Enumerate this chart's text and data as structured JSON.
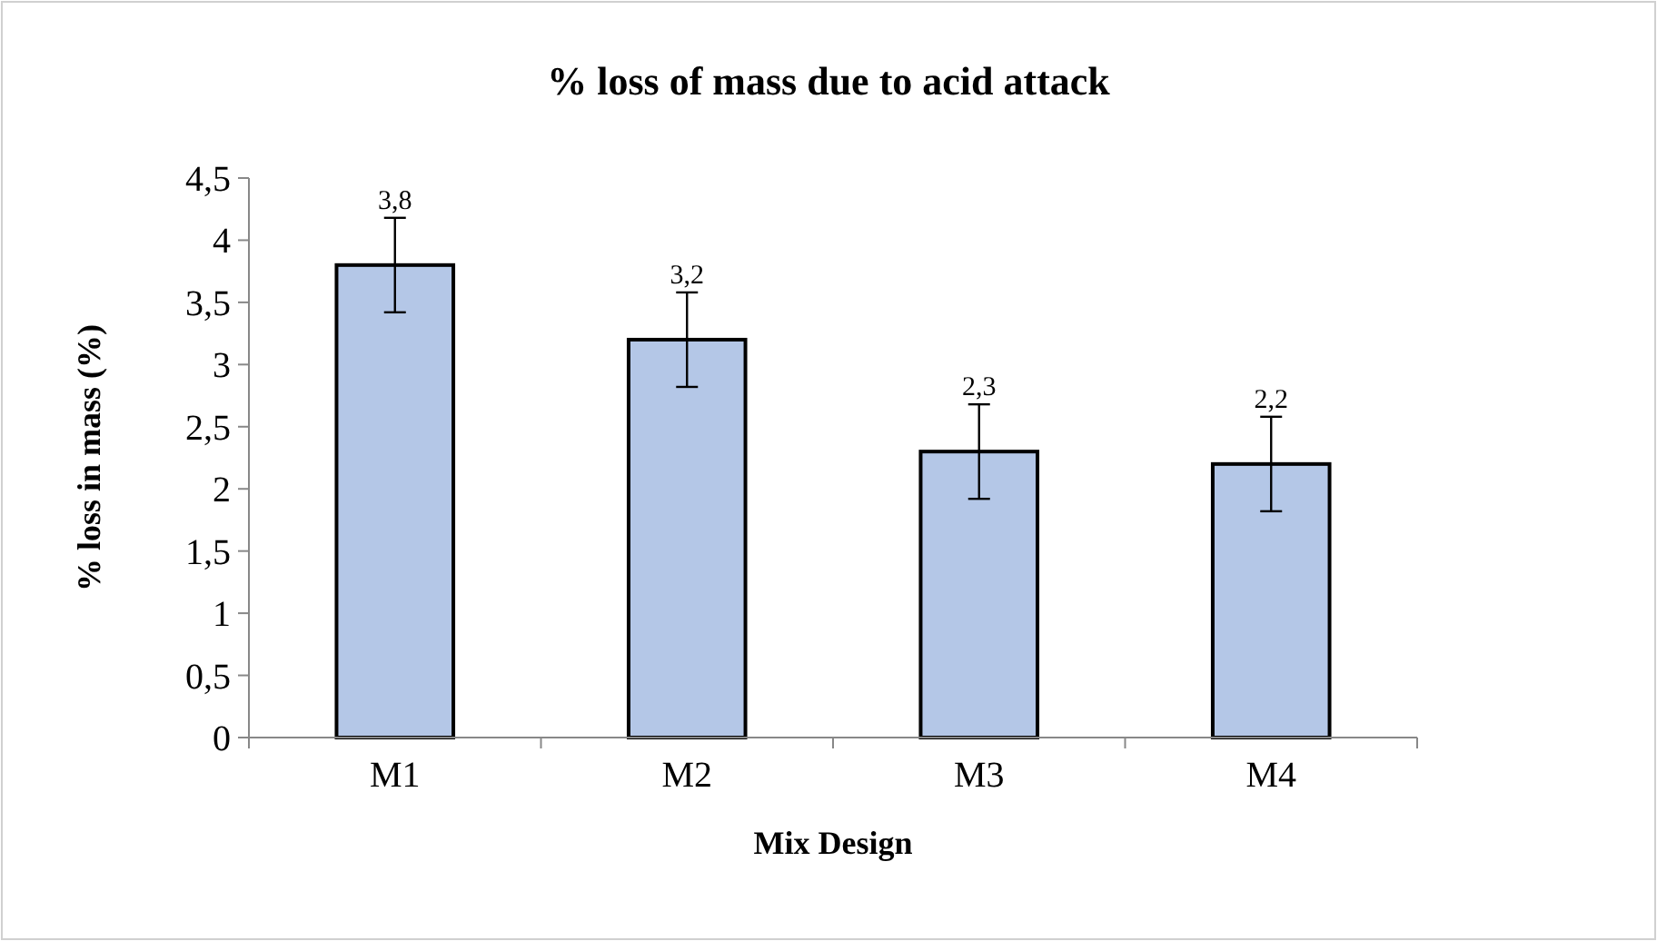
{
  "chart_data": {
    "type": "bar",
    "title": "% loss of mass due to acid attack",
    "xlabel": "Mix Design",
    "ylabel": "% loss in mass (%)",
    "categories": [
      "M1",
      "M2",
      "M3",
      "M4"
    ],
    "values": [
      3.8,
      3.2,
      2.3,
      2.2
    ],
    "value_labels": [
      "3,8",
      "3,2",
      "2,3",
      "2,2"
    ],
    "errors": [
      0.38,
      0.38,
      0.38,
      0.38
    ],
    "color": "#b4c7e7",
    "ylim": [
      0,
      4.5
    ],
    "yticks": [
      0,
      {
        "value": 0.5,
        "label": "0,5"
      },
      1,
      {
        "value": 1.5,
        "label": "1,5"
      },
      2,
      {
        "value": 2.5,
        "label": "2,5"
      },
      3,
      {
        "value": 3.5,
        "label": "3,5"
      },
      4,
      {
        "value": 4.5,
        "label": "4,5"
      }
    ],
    "grid": false
  }
}
